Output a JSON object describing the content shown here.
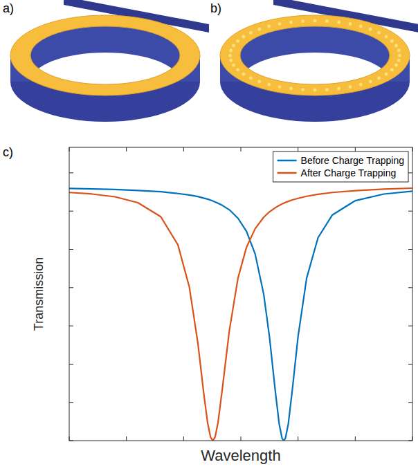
{
  "panel_labels": [
    "a)",
    "b)",
    "c)"
  ],
  "chart_data": {
    "type": "line",
    "x_label": "Wavelength",
    "y_label": "Transmission",
    "x": [
      0,
      0.4,
      0.8,
      1.2,
      1.6,
      1.9,
      2.1,
      2.25,
      2.35,
      2.42,
      2.47,
      2.51,
      2.55,
      2.6,
      2.68,
      2.8,
      2.95,
      3.1,
      3.25,
      3.4,
      3.5,
      3.6,
      3.67,
      3.72,
      3.75,
      3.78,
      3.83,
      3.9,
      4.0,
      4.15,
      4.35,
      4.6,
      5.0,
      5.5,
      6.0
    ],
    "series": [
      {
        "name": "Before Charge Trapping",
        "color": "#0072bd",
        "values": [
          0.989,
          0.987,
          0.985,
          0.981,
          0.976,
          0.969,
          0.963,
          0.957,
          0.951,
          0.947,
          0.943,
          0.94,
          0.936,
          0.931,
          0.922,
          0.905,
          0.872,
          0.82,
          0.732,
          0.574,
          0.408,
          0.199,
          0.066,
          0.01,
          0,
          0.01,
          0.066,
          0.199,
          0.408,
          0.637,
          0.796,
          0.885,
          0.941,
          0.967,
          0.978
        ]
      },
      {
        "name": "After Charge Trapping",
        "color": "#d95319",
        "values": [
          0.973,
          0.967,
          0.956,
          0.933,
          0.878,
          0.768,
          0.602,
          0.381,
          0.189,
          0.069,
          0.014,
          0,
          0.014,
          0.069,
          0.209,
          0.433,
          0.637,
          0.759,
          0.831,
          0.876,
          0.897,
          0.913,
          0.922,
          0.928,
          0.931,
          0.934,
          0.938,
          0.944,
          0.95,
          0.958,
          0.966,
          0.973,
          0.98,
          0.986,
          0.99
        ]
      }
    ],
    "xlim": [
      0,
      6
    ],
    "xticks": [
      0,
      1,
      2,
      3,
      4,
      5,
      6
    ],
    "ylim": [
      0,
      1.15
    ],
    "yticks": [
      0,
      0.15,
      0.3,
      0.45,
      0.6,
      0.75,
      0.9,
      1.05
    ],
    "legend": "upper-right",
    "tick_labels": false,
    "grid": false
  }
}
